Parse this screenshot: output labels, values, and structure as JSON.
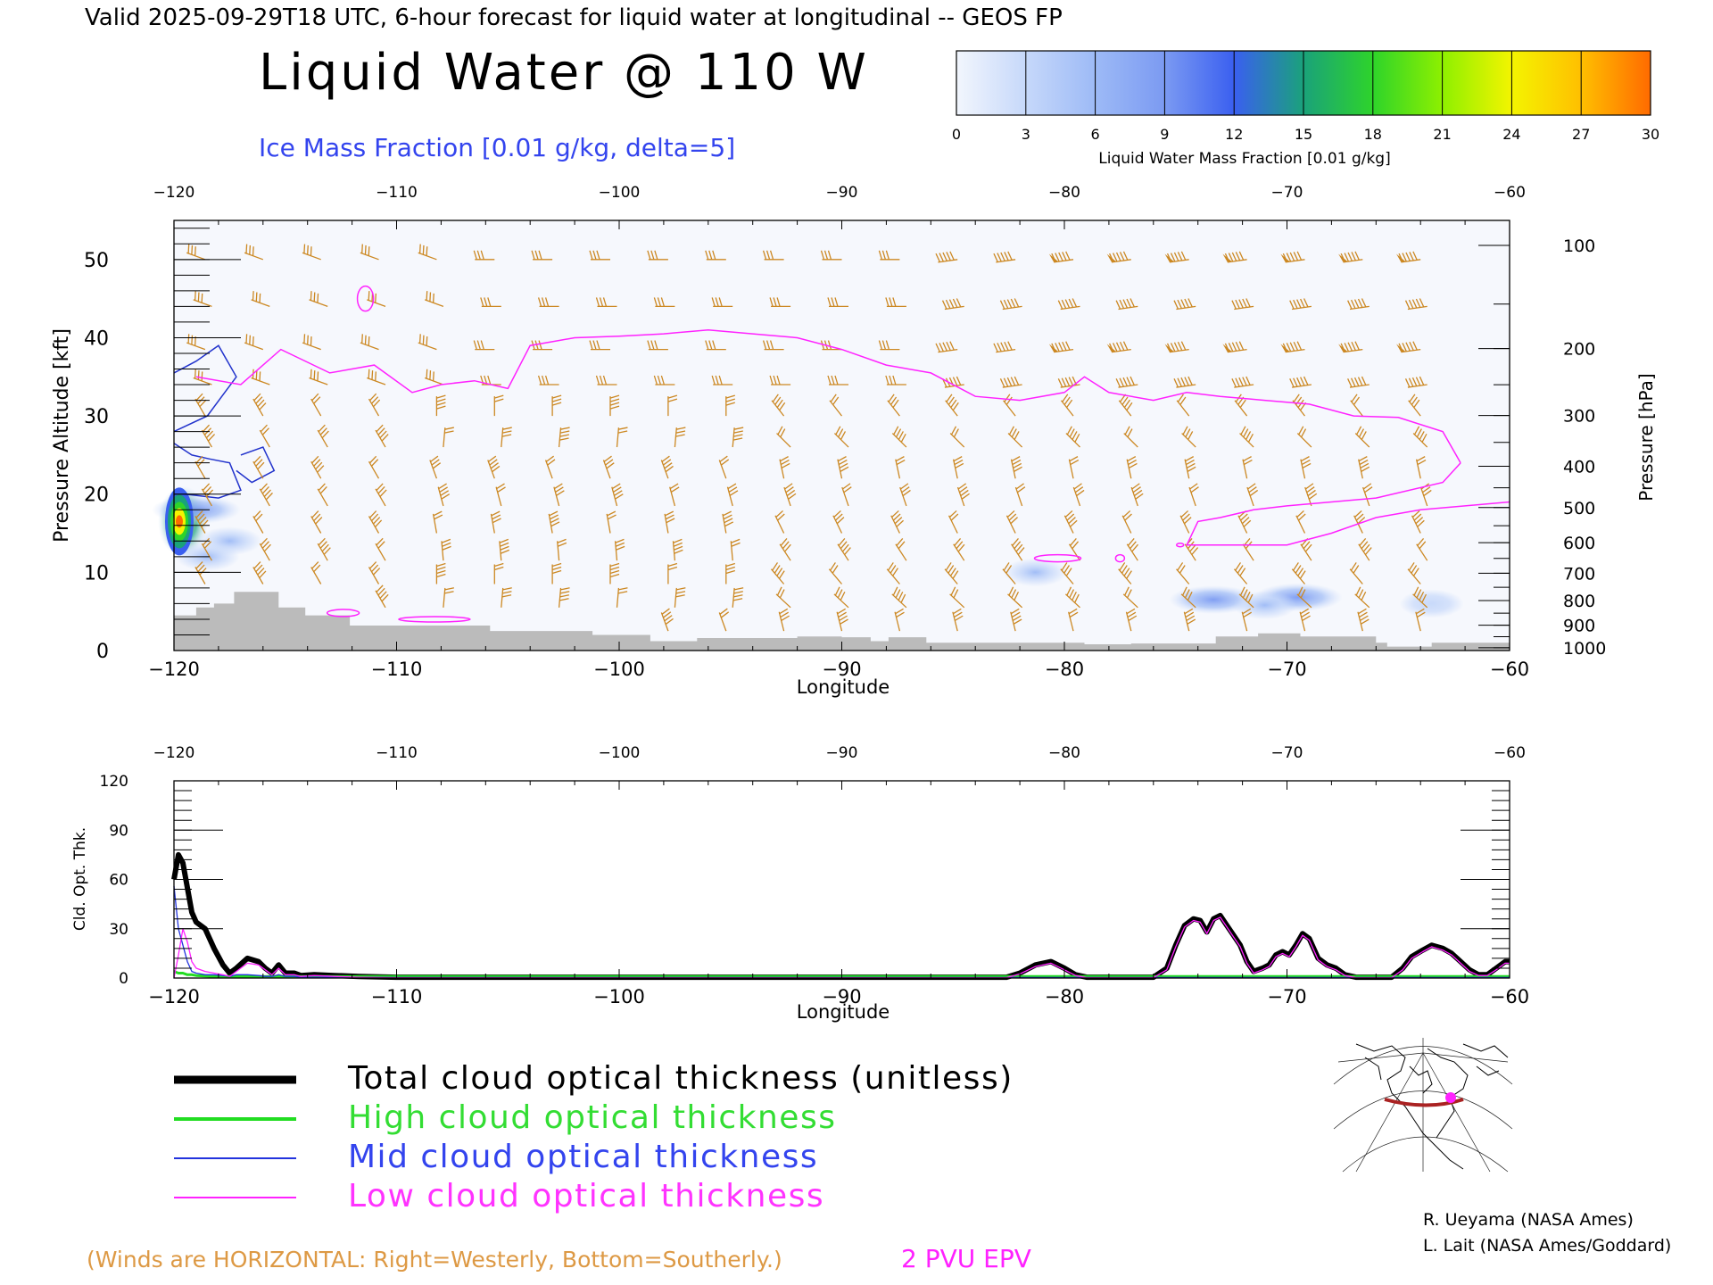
{
  "header": {
    "valid_line": "Valid 2025-09-29T18 UTC, 6-hour forecast for liquid water at longitudinal -- GEOS FP",
    "title": "Liquid Water @ 110 W",
    "ice_label": "Ice Mass Fraction [0.01 g/kg, delta=5]"
  },
  "colorbar": {
    "ticks": [
      "0",
      "3",
      "6",
      "9",
      "12",
      "15",
      "18",
      "21",
      "24",
      "27",
      "30"
    ],
    "label": "Liquid Water Mass Fraction [0.01 g/kg]",
    "colors": [
      "#f2f6fd",
      "#c6d8fa",
      "#9dbaf6",
      "#7b9af2",
      "#3a5ff0",
      "#1aa27a",
      "#2ed42a",
      "#8ef000",
      "#f4f400",
      "#ffbf00",
      "#ff6a00"
    ]
  },
  "top_panel": {
    "x_ticks": [
      "−120",
      "−110",
      "−100",
      "−90",
      "−80",
      "−70",
      "−60"
    ],
    "y_ticks": [
      "0",
      "10",
      "20",
      "30",
      "40",
      "50"
    ],
    "p_ticks": [
      "100",
      "200",
      "300",
      "400",
      "500",
      "600",
      "700",
      "800",
      "900",
      "1000"
    ],
    "xlabel": "Longitude",
    "ylabel": "Pressure Altitude [kft]",
    "y2label": "Pressure [hPa]"
  },
  "bottom_panel": {
    "x_ticks": [
      "−120",
      "−110",
      "−100",
      "−90",
      "−80",
      "−70",
      "−60"
    ],
    "y_ticks": [
      "0",
      "30",
      "60",
      "90",
      "120"
    ],
    "xlabel": "Longitude",
    "ylabel": "Cld. Opt. Thk."
  },
  "legend": {
    "total": "Total cloud optical thickness (unitless)",
    "high": "High cloud optical thickness",
    "mid": "Mid cloud optical thickness",
    "low": "Low cloud optical thickness"
  },
  "footer": {
    "winds_note": "(Winds are HORIZONTAL: Right=Westerly, Bottom=Southerly.)",
    "pvu_label": "2 PVU EPV",
    "credit1": "R. Ueyama (NASA Ames)",
    "credit2": "L. Lait (NASA Ames/Goddard)"
  },
  "colors": {
    "barb": "#cc8822",
    "pvu": "#ff22ff",
    "ice": "#2233cc",
    "terrain": "#bbbbbb",
    "total": "#000000",
    "high": "#22dd22",
    "mid": "#2233dd",
    "low": "#ff22ff"
  },
  "chart_data": [
    {
      "type": "heatmap",
      "title": "Liquid Water @ 110 W",
      "xlabel": "Longitude",
      "ylabel": "Pressure Altitude [kft]",
      "xlim": [
        -120,
        -60
      ],
      "ylim": [
        0,
        55
      ],
      "liquid_water_patches": [
        {
          "lon": -119.6,
          "kft": 16.5,
          "value": 27
        },
        {
          "lon": -119.0,
          "kft": 18,
          "value": 9
        },
        {
          "lon": -117.5,
          "kft": 14,
          "value": 5
        },
        {
          "lon": -118.5,
          "kft": 12,
          "value": 6
        },
        {
          "lon": -81.3,
          "kft": 10,
          "value": 5
        },
        {
          "lon": -73.3,
          "kft": 6.5,
          "value": 9
        },
        {
          "lon": -69.5,
          "kft": 6.8,
          "value": 10
        },
        {
          "lon": -71.0,
          "kft": 5.8,
          "value": 7
        },
        {
          "lon": -63.5,
          "kft": 6,
          "value": 4
        }
      ],
      "pvu_tropopause": {
        "lon": [
          -119,
          -117,
          -115.2,
          -113,
          -111,
          -109.3,
          -108,
          -106.5,
          -105,
          -104,
          -102,
          -100,
          -98,
          -96,
          -94,
          -92,
          -90,
          -88,
          -86,
          -84,
          -82,
          -80,
          -79.1,
          -78,
          -76,
          -74.5,
          -73,
          -71,
          -69,
          -67,
          -65,
          -63,
          -62.2
        ],
        "kft": [
          35,
          34,
          38.5,
          35.5,
          36.5,
          33,
          34,
          34.5,
          33.5,
          39,
          40,
          40.2,
          40.5,
          41,
          40.5,
          40,
          38.5,
          36.5,
          35.5,
          32.5,
          32,
          33,
          35,
          33,
          32,
          33,
          32.5,
          32,
          31.5,
          30,
          29.8,
          28,
          24
        ]
      },
      "terrain": {
        "lon": [
          -120,
          -119,
          -118.2,
          -117.3,
          -115.3,
          -114.1,
          -112.1,
          -109.7,
          -105.8,
          -101.2,
          -98.6,
          -96.5,
          -94,
          -92,
          -90,
          -88.7,
          -87.9,
          -86.2,
          -82.4,
          -79.1,
          -77,
          -73.2,
          -71.3,
          -69.4,
          -66,
          -65.5,
          -63.5,
          -60
        ],
        "kft": [
          4.5,
          5.5,
          6,
          7.5,
          5.5,
          4.5,
          3.2,
          3.2,
          2.5,
          2,
          1.2,
          1.6,
          1.6,
          1.8,
          1.7,
          1.2,
          1.7,
          1.0,
          1.0,
          0.8,
          0.9,
          1.8,
          2.2,
          1.8,
          1.0,
          0.5,
          1.0,
          1.0
        ]
      },
      "wind_barbs_note": "Winds are HORIZONTAL: Right=Westerly, Bottom=Southerly."
    },
    {
      "type": "line",
      "xlabel": "Longitude",
      "ylabel": "Cld. Opt. Thk.",
      "xlim": [
        -120,
        -60
      ],
      "ylim": [
        0,
        120
      ],
      "x": [
        -120,
        -119.8,
        -119.6,
        -119.4,
        -119.2,
        -119,
        -118.6,
        -118.2,
        -117.8,
        -117.5,
        -117.2,
        -116.7,
        -116.2,
        -115.9,
        -115.6,
        -115.3,
        -115,
        -114.6,
        -114.3,
        -113.7,
        -112.8,
        -111.7,
        -110,
        -100,
        -90,
        -82.6,
        -82,
        -81.3,
        -80.6,
        -80,
        -79.5,
        -79,
        -76,
        -75.4,
        -75,
        -74.6,
        -74.2,
        -73.9,
        -73.6,
        -73.3,
        -73,
        -72.7,
        -72.4,
        -72.1,
        -71.8,
        -71.5,
        -71.1,
        -70.8,
        -70.5,
        -70.2,
        -69.9,
        -69.6,
        -69.3,
        -69,
        -68.6,
        -68.2,
        -67.8,
        -67.4,
        -66.9,
        -66.5,
        -66,
        -65.3,
        -64.8,
        -64.4,
        -63.9,
        -63.5,
        -63,
        -62.6,
        -62.2,
        -61.8,
        -61.4,
        -61,
        -60.6,
        -60.2,
        -60
      ],
      "series": [
        {
          "name": "Total cloud optical thickness (unitless)",
          "values": [
            60,
            75,
            70,
            55,
            40,
            34,
            30,
            18,
            8,
            3,
            6,
            12,
            10,
            6,
            3,
            8,
            3,
            3,
            1.5,
            2,
            1.5,
            1,
            0.5,
            0.5,
            0.5,
            0.5,
            3,
            8,
            10,
            6,
            2,
            0.5,
            0.5,
            6,
            20,
            32,
            36,
            35,
            28,
            36,
            38,
            32,
            26,
            20,
            10,
            4,
            6,
            8,
            14,
            16,
            14,
            20,
            27,
            24,
            12,
            8,
            6,
            2,
            0.5,
            0.5,
            0.5,
            0.5,
            6,
            13,
            17,
            20,
            18,
            15,
            10,
            5,
            2,
            2,
            6,
            10,
            10
          ]
        },
        {
          "name": "High cloud optical thickness",
          "values": [
            4,
            3,
            3,
            2,
            2,
            1.5,
            1.2,
            1,
            1,
            1,
            1,
            1,
            1,
            1,
            1,
            1,
            1,
            1,
            1,
            1,
            1,
            1,
            1,
            1,
            1,
            1,
            1,
            1,
            1,
            1,
            1,
            1,
            1,
            1,
            1,
            1,
            1,
            1,
            1,
            1,
            1,
            1,
            1,
            1,
            1,
            1,
            1,
            1,
            1,
            1,
            1,
            1,
            1,
            1,
            1,
            1,
            1,
            1,
            1,
            1,
            1,
            1,
            1,
            1,
            1,
            1,
            1,
            1,
            1,
            1,
            1,
            1,
            1,
            1,
            1
          ]
        },
        {
          "name": "Mid cloud optical thickness",
          "values": [
            56,
            30,
            20,
            10,
            4,
            3,
            2,
            2,
            1.5,
            1,
            2,
            2,
            1.5,
            1,
            1,
            2,
            1,
            1,
            0.5,
            0.5,
            0.5,
            0.5,
            0.3,
            0.3,
            0.3,
            0.3,
            0.3,
            0.3,
            0.3,
            0.3,
            0.3,
            0.3,
            0.3,
            0.3,
            0.3,
            0.3,
            0.3,
            0.3,
            0.3,
            0.3,
            0.3,
            0.3,
            0.3,
            0.3,
            0.3,
            0.3,
            0.3,
            0.3,
            0.3,
            0.3,
            0.3,
            0.3,
            0.3,
            0.3,
            0.3,
            0.3,
            0.3,
            0.3,
            0.3,
            0.3,
            0.3,
            0.3,
            0.3,
            0.3,
            0.3,
            0.3,
            0.3,
            0.3,
            0.3,
            0.3,
            0.3,
            0.3,
            0.3,
            0.3,
            0.3
          ]
        },
        {
          "name": "Low cloud optical thickness",
          "values": [
            0,
            14,
            30,
            22,
            10,
            6,
            4,
            3,
            2,
            1,
            4,
            9,
            8,
            5,
            2,
            6,
            2,
            2,
            1,
            1.5,
            1,
            0.5,
            0.2,
            0.2,
            0.2,
            0.2,
            2.5,
            7,
            9,
            5,
            1.5,
            0.2,
            0.2,
            5,
            19,
            31,
            35,
            34,
            27,
            35,
            37,
            31,
            25,
            19,
            9,
            3,
            5,
            7,
            13,
            15,
            13,
            19,
            26,
            23,
            11,
            7,
            5,
            1.5,
            0.2,
            0.2,
            0.2,
            0.2,
            5,
            12,
            16,
            19,
            17,
            14,
            9,
            4,
            1.5,
            1.5,
            5,
            9,
            9
          ]
        }
      ]
    }
  ]
}
